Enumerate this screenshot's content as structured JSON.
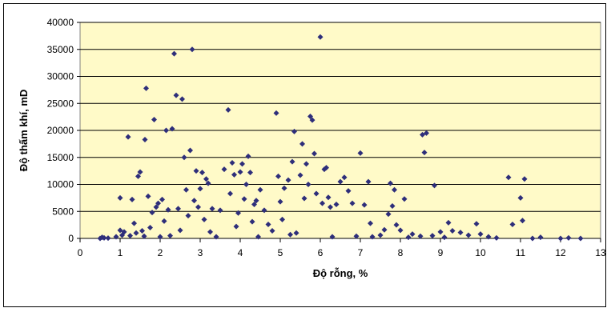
{
  "chart_data": {
    "type": "scatter",
    "title": "",
    "xlabel": "Độ rỗng, %",
    "ylabel": "Độ thấm khí, mD",
    "xlim": [
      0,
      13
    ],
    "ylim": [
      0,
      40000
    ],
    "x_ticks": [
      0,
      1,
      2,
      3,
      4,
      5,
      6,
      7,
      8,
      9,
      10,
      11,
      12,
      13
    ],
    "y_ticks": [
      0,
      5000,
      10000,
      15000,
      20000,
      25000,
      30000,
      35000,
      40000
    ],
    "grid": "horizontal",
    "legend": "none",
    "plot_background": "#FFFAC8",
    "marker_color": "#2E2E7A",
    "series": [
      {
        "points": [
          [
            0.5,
            0
          ],
          [
            0.55,
            200
          ],
          [
            0.6,
            100
          ],
          [
            0.7,
            50
          ],
          [
            0.9,
            300
          ],
          [
            1.0,
            1500
          ],
          [
            1.0,
            7500
          ],
          [
            1.05,
            600
          ],
          [
            1.1,
            1200
          ],
          [
            1.2,
            18800
          ],
          [
            1.25,
            500
          ],
          [
            1.3,
            7200
          ],
          [
            1.35,
            2800
          ],
          [
            1.4,
            1000
          ],
          [
            1.45,
            11500
          ],
          [
            1.5,
            12300
          ],
          [
            1.55,
            1400
          ],
          [
            1.6,
            400
          ],
          [
            1.62,
            18300
          ],
          [
            1.65,
            27800
          ],
          [
            1.7,
            7800
          ],
          [
            1.75,
            2000
          ],
          [
            1.8,
            4800
          ],
          [
            1.85,
            22000
          ],
          [
            1.9,
            5800
          ],
          [
            1.95,
            6500
          ],
          [
            2.0,
            300
          ],
          [
            2.05,
            7200
          ],
          [
            2.1,
            3200
          ],
          [
            2.15,
            20000
          ],
          [
            2.2,
            5300
          ],
          [
            2.25,
            500
          ],
          [
            2.3,
            20300
          ],
          [
            2.35,
            34200
          ],
          [
            2.4,
            26500
          ],
          [
            2.45,
            5500
          ],
          [
            2.5,
            1500
          ],
          [
            2.55,
            25800
          ],
          [
            2.6,
            15000
          ],
          [
            2.65,
            9000
          ],
          [
            2.7,
            4200
          ],
          [
            2.75,
            16300
          ],
          [
            2.8,
            35000
          ],
          [
            2.85,
            7000
          ],
          [
            2.9,
            12500
          ],
          [
            2.95,
            5800
          ],
          [
            3.0,
            9200
          ],
          [
            3.05,
            12200
          ],
          [
            3.1,
            3500
          ],
          [
            3.15,
            11000
          ],
          [
            3.2,
            10200
          ],
          [
            3.25,
            1200
          ],
          [
            3.3,
            5500
          ],
          [
            3.4,
            300
          ],
          [
            3.5,
            5200
          ],
          [
            3.6,
            12800
          ],
          [
            3.7,
            23800
          ],
          [
            3.75,
            8300
          ],
          [
            3.8,
            14000
          ],
          [
            3.85,
            11800
          ],
          [
            3.9,
            2200
          ],
          [
            3.95,
            4700
          ],
          [
            4.0,
            12300
          ],
          [
            4.05,
            13800
          ],
          [
            4.1,
            7300
          ],
          [
            4.15,
            10000
          ],
          [
            4.2,
            15200
          ],
          [
            4.25,
            12200
          ],
          [
            4.3,
            3100
          ],
          [
            4.35,
            6300
          ],
          [
            4.4,
            7000
          ],
          [
            4.45,
            300
          ],
          [
            4.5,
            9000
          ],
          [
            4.6,
            5200
          ],
          [
            4.7,
            2600
          ],
          [
            4.8,
            1400
          ],
          [
            4.9,
            23200
          ],
          [
            4.95,
            11500
          ],
          [
            5.0,
            6800
          ],
          [
            5.05,
            3500
          ],
          [
            5.1,
            9300
          ],
          [
            5.2,
            10800
          ],
          [
            5.25,
            700
          ],
          [
            5.3,
            14200
          ],
          [
            5.35,
            19800
          ],
          [
            5.4,
            1000
          ],
          [
            5.5,
            11700
          ],
          [
            5.55,
            17500
          ],
          [
            5.6,
            7400
          ],
          [
            5.65,
            13800
          ],
          [
            5.7,
            10000
          ],
          [
            5.75,
            22600
          ],
          [
            5.8,
            21900
          ],
          [
            5.85,
            15700
          ],
          [
            5.9,
            8300
          ],
          [
            6.0,
            37300
          ],
          [
            6.05,
            6500
          ],
          [
            6.1,
            12800
          ],
          [
            6.15,
            13100
          ],
          [
            6.2,
            7600
          ],
          [
            6.25,
            5800
          ],
          [
            6.3,
            300
          ],
          [
            6.4,
            6300
          ],
          [
            6.5,
            10500
          ],
          [
            6.6,
            11300
          ],
          [
            6.7,
            8800
          ],
          [
            6.8,
            6500
          ],
          [
            6.9,
            400
          ],
          [
            7.0,
            15800
          ],
          [
            7.1,
            6200
          ],
          [
            7.2,
            10500
          ],
          [
            7.25,
            2800
          ],
          [
            7.3,
            300
          ],
          [
            7.5,
            600
          ],
          [
            7.6,
            1600
          ],
          [
            7.7,
            4500
          ],
          [
            7.75,
            10200
          ],
          [
            7.8,
            6000
          ],
          [
            7.85,
            9000
          ],
          [
            7.9,
            2500
          ],
          [
            8.0,
            1500
          ],
          [
            8.1,
            7300
          ],
          [
            8.2,
            200
          ],
          [
            8.3,
            800
          ],
          [
            8.5,
            400
          ],
          [
            8.55,
            19200
          ],
          [
            8.6,
            15900
          ],
          [
            8.65,
            19500
          ],
          [
            8.8,
            500
          ],
          [
            8.85,
            9800
          ],
          [
            9.0,
            1200
          ],
          [
            9.1,
            200
          ],
          [
            9.2,
            2900
          ],
          [
            9.3,
            1400
          ],
          [
            9.5,
            1100
          ],
          [
            9.7,
            600
          ],
          [
            9.9,
            2700
          ],
          [
            10.0,
            800
          ],
          [
            10.2,
            300
          ],
          [
            10.4,
            100
          ],
          [
            10.7,
            11300
          ],
          [
            10.8,
            2600
          ],
          [
            11.0,
            7500
          ],
          [
            11.05,
            3300
          ],
          [
            11.1,
            11000
          ],
          [
            11.3,
            0
          ],
          [
            11.5,
            200
          ],
          [
            12.0,
            0
          ],
          [
            12.2,
            100
          ],
          [
            12.5,
            0
          ]
        ]
      }
    ]
  }
}
